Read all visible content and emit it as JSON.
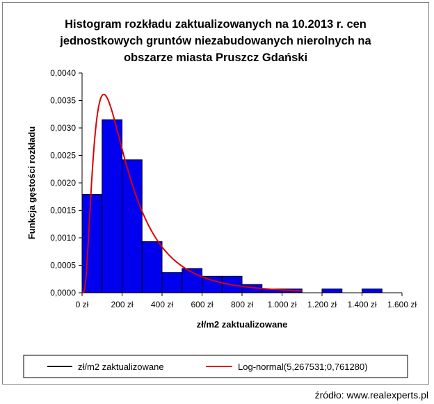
{
  "chart_data": {
    "type": "bar",
    "title_lines": [
      "Histogram rozkładu zaktualizowanych na 10.2013 r. cen",
      "jednostkowych gruntów niezabudowanych nierolnych na",
      "obszarze miasta Pruszcz Gdański"
    ],
    "xlabel": "zł/m2 zaktualizowane",
    "ylabel": "Funkcja gęstości rozkładu",
    "xlim": [
      0,
      1600
    ],
    "ylim": [
      0,
      0.004
    ],
    "x_ticks": [
      0,
      200,
      400,
      600,
      800,
      1000,
      1200,
      1400,
      1600
    ],
    "x_tick_labels": [
      "0 zł",
      "200 zł",
      "400 zł",
      "600 zł",
      "800 zł",
      "1.000 zł",
      "1.200 zł",
      "1.400 zł",
      "1.600 zł"
    ],
    "y_ticks": [
      0,
      0.0005,
      0.001,
      0.0015,
      0.002,
      0.0025,
      0.003,
      0.0035,
      0.004
    ],
    "y_tick_labels": [
      "0,0000",
      "0,0005",
      "0,0010",
      "0,0015",
      "0,0020",
      "0,0025",
      "0,0030",
      "0,0035",
      "0,0040"
    ],
    "bins": [
      {
        "from": 0,
        "to": 100,
        "value": 0.00179
      },
      {
        "from": 100,
        "to": 200,
        "value": 0.00315
      },
      {
        "from": 200,
        "to": 300,
        "value": 0.00242
      },
      {
        "from": 300,
        "to": 400,
        "value": 0.00093
      },
      {
        "from": 400,
        "to": 500,
        "value": 0.00037
      },
      {
        "from": 500,
        "to": 600,
        "value": 0.00044
      },
      {
        "from": 600,
        "to": 700,
        "value": 0.0003
      },
      {
        "from": 700,
        "to": 800,
        "value": 0.0003
      },
      {
        "from": 800,
        "to": 900,
        "value": 0.00015
      },
      {
        "from": 900,
        "to": 1000,
        "value": 7e-05
      },
      {
        "from": 1000,
        "to": 1100,
        "value": 7e-05
      },
      {
        "from": 1100,
        "to": 1200,
        "value": 0.0
      },
      {
        "from": 1200,
        "to": 1300,
        "value": 7e-05
      },
      {
        "from": 1300,
        "to": 1400,
        "value": 0.0
      },
      {
        "from": 1400,
        "to": 1500,
        "value": 7e-05
      },
      {
        "from": 1500,
        "to": 1600,
        "value": 0.0
      }
    ],
    "fitted_curve": {
      "name": "Log-normal(5,267531;0,761280)",
      "distribution": "lognormal",
      "mu": 5.267531,
      "sigma": 0.76128,
      "x_end": 1100
    },
    "legend": {
      "placement": "bottom",
      "entries": [
        {
          "label": "zł/m2 zaktualizowane",
          "color": "#000000"
        },
        {
          "label": "Log-normal(5,267531;0,761280)",
          "color": "#dd0000"
        }
      ]
    },
    "colors": {
      "bar_fill": "#0000ee",
      "bar_stroke": "#000000",
      "curve": "#dd0000"
    }
  },
  "source_note": "źródło: www.realexperts.pl"
}
